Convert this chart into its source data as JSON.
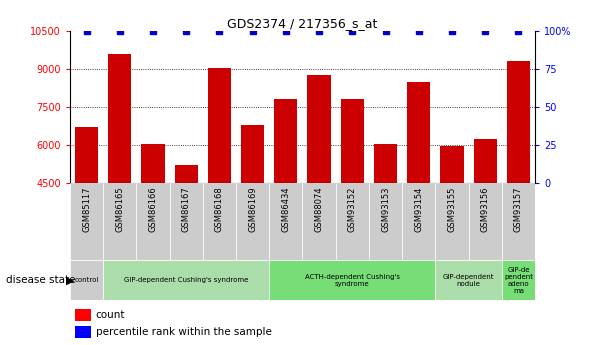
{
  "title": "GDS2374 / 217356_s_at",
  "categories": [
    "GSM85117",
    "GSM86165",
    "GSM86166",
    "GSM86167",
    "GSM86168",
    "GSM86169",
    "GSM86434",
    "GSM88074",
    "GSM93152",
    "GSM93153",
    "GSM93154",
    "GSM93155",
    "GSM93156",
    "GSM93157"
  ],
  "bar_values": [
    6700,
    9600,
    6050,
    5200,
    9050,
    6800,
    7800,
    8750,
    7800,
    6050,
    8500,
    5950,
    6250,
    9300
  ],
  "percentile_values": [
    100,
    100,
    100,
    100,
    100,
    100,
    100,
    100,
    100,
    100,
    100,
    100,
    100,
    100
  ],
  "bar_color": "#cc0000",
  "percentile_color": "#0000cc",
  "ylim_left": [
    4500,
    10500
  ],
  "ylim_right": [
    0,
    100
  ],
  "yticks_left": [
    4500,
    6000,
    7500,
    9000,
    10500
  ],
  "yticks_right": [
    0,
    25,
    50,
    75,
    100
  ],
  "grid_values": [
    6000,
    7500,
    9000
  ],
  "disease_groups": [
    {
      "label": "control",
      "start": 0,
      "end": 1,
      "color": "#cccccc"
    },
    {
      "label": "GIP-dependent Cushing's syndrome",
      "start": 1,
      "end": 6,
      "color": "#aaddaa"
    },
    {
      "label": "ACTH-dependent Cushing's\nsyndrome",
      "start": 6,
      "end": 11,
      "color": "#77dd77"
    },
    {
      "label": "GIP-dependent\nnodule",
      "start": 11,
      "end": 13,
      "color": "#aaddaa"
    },
    {
      "label": "GIP-de\npendent\nadeno\nma",
      "start": 13,
      "end": 14,
      "color": "#77dd77"
    }
  ],
  "disease_state_label": "disease state",
  "xtick_cell_color": "#cccccc",
  "background_color": "#ffffff"
}
